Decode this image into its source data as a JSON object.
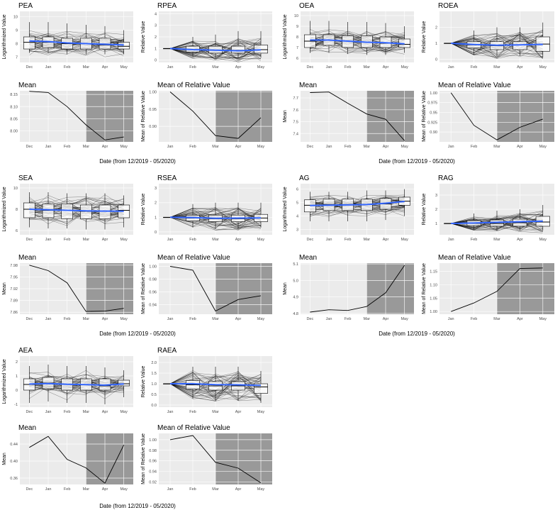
{
  "colors": {
    "panel_bg": "#ebebeb",
    "grid": "#ffffff",
    "line": "#000000",
    "smooth": "#3366ff",
    "shade": "#999999",
    "box_fill": "#ffffff"
  },
  "xcaption": "Date (from 12/2019 - 05/2020)",
  "chart_data": [
    {
      "id": "PEA",
      "type": "boxplot_spaghetti",
      "title": "PEA",
      "ylabel": "Logarithmized Value",
      "categories": [
        "Dec",
        "Jan",
        "Feb",
        "Mar",
        "Apr",
        "May"
      ],
      "ylim": [
        6.6,
        10.4
      ],
      "yticks": [
        7,
        8,
        9,
        10
      ],
      "boxes": [
        [
          7.3,
          7.6,
          8.1,
          8.5,
          9.6
        ],
        [
          7.3,
          7.7,
          8.1,
          8.5,
          9.6
        ],
        [
          7.2,
          7.6,
          8.0,
          8.4,
          9.5
        ],
        [
          7.2,
          7.6,
          8.0,
          8.4,
          9.4
        ],
        [
          7.2,
          7.6,
          7.9,
          8.4,
          9.3
        ],
        [
          7.2,
          7.6,
          7.8,
          8.1,
          9.0
        ]
      ],
      "trend": [
        8.2,
        8.15,
        8.05,
        8.0,
        7.95,
        7.9
      ]
    },
    {
      "id": "RPEA",
      "type": "boxplot_spaghetti",
      "title": "RPEA",
      "ylabel": "Relative Value",
      "categories": [
        "Jan",
        "Feb",
        "Mar",
        "Apr",
        "May"
      ],
      "ylim": [
        -0.2,
        4.2
      ],
      "yticks": [
        0,
        1,
        2,
        3,
        4
      ],
      "boxes": [
        [
          1,
          1,
          1,
          1,
          1
        ],
        [
          0.3,
          0.7,
          0.9,
          1.2,
          2.0
        ],
        [
          0.2,
          0.6,
          0.85,
          1.2,
          2.2
        ],
        [
          0.2,
          0.6,
          0.85,
          1.2,
          2.5
        ],
        [
          0.2,
          0.6,
          0.9,
          1.3,
          2.5
        ]
      ],
      "trend": [
        1.0,
        0.9,
        0.85,
        0.8,
        0.88
      ]
    },
    {
      "id": "OEA",
      "type": "boxplot_spaghetti",
      "title": "OEA",
      "ylabel": "Logarithmized Value",
      "categories": [
        "Dec",
        "Jan",
        "Feb",
        "Mar",
        "Apr",
        "May"
      ],
      "ylim": [
        5.6,
        10.4
      ],
      "yticks": [
        6,
        7,
        8,
        9,
        10
      ],
      "boxes": [
        [
          6.5,
          7.0,
          7.6,
          8.2,
          9.5
        ],
        [
          6.5,
          7.2,
          7.7,
          8.2,
          9.5
        ],
        [
          6.4,
          7.0,
          7.6,
          8.1,
          9.4
        ],
        [
          6.3,
          7.0,
          7.5,
          8.1,
          9.4
        ],
        [
          6.3,
          7.0,
          7.4,
          8.0,
          9.3
        ],
        [
          6.5,
          7.0,
          7.3,
          7.8,
          9.0
        ]
      ],
      "trend": [
        7.7,
        7.7,
        7.6,
        7.5,
        7.45,
        7.35
      ]
    },
    {
      "id": "ROEA",
      "type": "boxplot_spaghetti",
      "title": "ROEA",
      "ylabel": "Relative Value",
      "categories": [
        "Jan",
        "Feb",
        "Mar",
        "Apr",
        "May"
      ],
      "ylim": [
        -0.2,
        3.0
      ],
      "yticks": [
        0,
        1,
        2
      ],
      "boxes": [
        [
          1,
          1,
          1,
          1,
          1
        ],
        [
          0.3,
          0.7,
          0.9,
          1.1,
          1.8
        ],
        [
          0.2,
          0.6,
          0.85,
          1.1,
          2.0
        ],
        [
          0.2,
          0.6,
          0.9,
          1.1,
          2.0
        ],
        [
          0.1,
          0.5,
          0.95,
          1.4,
          2.3
        ]
      ],
      "trend": [
        1.0,
        0.92,
        0.88,
        0.9,
        0.93
      ]
    },
    {
      "id": "PEA_mean",
      "type": "line",
      "title": "Mean",
      "ylabel": "",
      "categories": [
        "Dec",
        "Jan",
        "Feb",
        "Mar",
        "Apr",
        "May"
      ],
      "ylim": [
        7.955,
        8.165
      ],
      "yticks": [
        8.0,
        8.05,
        8.1,
        8.15
      ],
      "ytick_labels": [
        "8.00",
        "8.05",
        "8.10",
        "8.15"
      ],
      "values": [
        8.163,
        8.158,
        8.1,
        8.025,
        7.963,
        7.975
      ],
      "shade_from": "Mar",
      "shade_to": "May"
    },
    {
      "id": "RPEA_mean",
      "type": "line",
      "title": "Mean of Relative Value",
      "ylabel": "Mean of Relative Value",
      "categories": [
        "Jan",
        "Feb",
        "Mar",
        "Apr",
        "May"
      ],
      "ylim": [
        0.855,
        1.003
      ],
      "yticks": [
        0.9,
        0.95,
        1.0
      ],
      "ytick_labels": [
        "0.90",
        "0.95",
        "1.00"
      ],
      "values": [
        1.0,
        0.944,
        0.873,
        0.865,
        0.925
      ],
      "shade_from": "Mar",
      "shade_to": "May"
    },
    {
      "id": "OEA_mean",
      "type": "line",
      "title": "Mean",
      "ylabel": "Mean",
      "categories": [
        "Dec",
        "Jan",
        "Feb",
        "Mar",
        "Apr",
        "May"
      ],
      "ylim": [
        7.33,
        7.76
      ],
      "yticks": [
        7.4,
        7.5,
        7.6,
        7.7
      ],
      "ytick_labels": [
        "7.4",
        "7.5",
        "7.6",
        "7.7"
      ],
      "values": [
        7.745,
        7.75,
        7.655,
        7.565,
        7.52,
        7.34
      ],
      "shade_from": "Mar",
      "shade_to": "May"
    },
    {
      "id": "ROEA_mean",
      "type": "line",
      "title": "Mean of Relative Value",
      "ylabel": "Mean of Relative Value",
      "categories": [
        "Jan",
        "Feb",
        "Mar",
        "Apr",
        "May"
      ],
      "ylim": [
        0.875,
        1.005
      ],
      "yticks": [
        0.9,
        0.925,
        0.95,
        0.975,
        1.0
      ],
      "ytick_labels": [
        "0.90",
        "0.925",
        "0.95",
        "0.975",
        "1.00"
      ],
      "values": [
        1.0,
        0.917,
        0.88,
        0.912,
        0.933
      ],
      "shade_from": "Mar",
      "shade_to": "May"
    },
    {
      "id": "SEA",
      "type": "boxplot_spaghetti",
      "title": "SEA",
      "ylabel": "Logarithmized Value",
      "categories": [
        "Dec",
        "Jan",
        "Feb",
        "Mar",
        "Apr",
        "May"
      ],
      "ylim": [
        5.6,
        10.4
      ],
      "yticks": [
        6,
        8,
        10
      ],
      "boxes": [
        [
          6.3,
          7.2,
          8.0,
          8.6,
          9.6
        ],
        [
          6.2,
          7.2,
          7.9,
          8.5,
          9.6
        ],
        [
          6.2,
          7.1,
          7.9,
          8.5,
          9.5
        ],
        [
          6.1,
          7.1,
          7.8,
          8.4,
          9.5
        ],
        [
          6.1,
          7.1,
          7.8,
          8.4,
          9.5
        ],
        [
          6.3,
          7.2,
          7.9,
          8.4,
          9.3
        ]
      ],
      "trend": [
        8.0,
        7.95,
        7.9,
        7.85,
        7.83,
        7.82
      ]
    },
    {
      "id": "RSEA",
      "type": "boxplot_spaghetti",
      "title": "RSEA",
      "ylabel": "Relative Value",
      "categories": [
        "Jan",
        "Feb",
        "Mar",
        "Apr",
        "May"
      ],
      "ylim": [
        -0.2,
        3.3
      ],
      "yticks": [
        0,
        1,
        2,
        3
      ],
      "boxes": [
        [
          1,
          1,
          1,
          1,
          1
        ],
        [
          0.3,
          0.75,
          0.95,
          1.15,
          1.9
        ],
        [
          0.2,
          0.7,
          0.9,
          1.15,
          2.0
        ],
        [
          0.2,
          0.7,
          0.9,
          1.15,
          2.0
        ],
        [
          0.3,
          0.7,
          0.95,
          1.2,
          2.0
        ]
      ],
      "trend": [
        1.0,
        0.98,
        0.93,
        0.94,
        0.95
      ]
    },
    {
      "id": "AG",
      "type": "boxplot_spaghetti",
      "title": "AG",
      "ylabel": "Logarithmized Value",
      "categories": [
        "Dec",
        "Jan",
        "Feb",
        "Mar",
        "Apr",
        "May"
      ],
      "ylim": [
        2.6,
        6.4
      ],
      "yticks": [
        3,
        4,
        5,
        6
      ],
      "boxes": [
        [
          3.6,
          4.3,
          4.8,
          5.2,
          5.8
        ],
        [
          3.6,
          4.4,
          4.85,
          5.25,
          5.8
        ],
        [
          3.6,
          4.4,
          4.85,
          5.25,
          5.8
        ],
        [
          3.6,
          4.4,
          4.85,
          5.25,
          5.9
        ],
        [
          3.7,
          4.5,
          4.9,
          5.3,
          5.9
        ],
        [
          4.0,
          4.8,
          5.1,
          5.4,
          6.0
        ]
      ],
      "trend": [
        4.78,
        4.8,
        4.82,
        4.85,
        4.95,
        5.08
      ]
    },
    {
      "id": "RAG",
      "type": "boxplot_spaghetti",
      "title": "RAG",
      "ylabel": "Relative Value",
      "categories": [
        "Jan",
        "Feb",
        "Mar",
        "Apr",
        "May"
      ],
      "ylim": [
        0.2,
        3.8
      ],
      "yticks": [
        1,
        2,
        3
      ],
      "boxes": [
        [
          1,
          1,
          1,
          1,
          1
        ],
        [
          0.6,
          0.85,
          1.0,
          1.2,
          1.7
        ],
        [
          0.5,
          0.8,
          1.0,
          1.25,
          1.9
        ],
        [
          0.5,
          0.8,
          1.05,
          1.3,
          2.0
        ],
        [
          0.5,
          0.8,
          1.1,
          1.5,
          2.3
        ]
      ],
      "trend": [
        1.0,
        1.03,
        1.08,
        1.12,
        1.16
      ]
    },
    {
      "id": "SEA_mean",
      "type": "line",
      "title": "Mean",
      "ylabel": "Mean",
      "categories": [
        "Dec",
        "Jan",
        "Feb",
        "Mar",
        "Apr",
        "May"
      ],
      "ylim": [
        7.855,
        7.985
      ],
      "yticks": [
        7.86,
        7.89,
        7.92,
        7.95,
        7.98
      ],
      "ytick_labels": [
        "7.86",
        "7.89",
        "7.92",
        "7.95",
        "7.98"
      ],
      "values": [
        7.98,
        7.966,
        7.935,
        7.862,
        7.863,
        7.87
      ],
      "shade_from": "Mar",
      "shade_to": "May"
    },
    {
      "id": "RSEA_mean",
      "type": "line",
      "title": "Mean of Relative Value",
      "ylabel": "Mean of Relative Value",
      "categories": [
        "Jan",
        "Feb",
        "Mar",
        "Apr",
        "May"
      ],
      "ylim": [
        0.925,
        1.005
      ],
      "yticks": [
        0.94,
        0.96,
        0.98,
        1.0
      ],
      "ytick_labels": [
        "0.94",
        "0.96",
        "0.98",
        "1.00"
      ],
      "values": [
        1.0,
        0.994,
        0.93,
        0.948,
        0.954
      ],
      "shade_from": "Mar",
      "shade_to": "May"
    },
    {
      "id": "AG_mean",
      "type": "line",
      "title": "Mean",
      "ylabel": "Mean",
      "categories": [
        "Dec",
        "Jan",
        "Feb",
        "Mar",
        "Apr",
        "May"
      ],
      "ylim": [
        4.795,
        5.105
      ],
      "yticks": [
        4.8,
        4.9,
        5.0,
        5.1
      ],
      "ytick_labels": [
        "4.8",
        "4.9",
        "5.0",
        "5.1"
      ],
      "values": [
        4.808,
        4.822,
        4.818,
        4.842,
        4.925,
        5.092
      ],
      "shade_from": "Mar",
      "shade_to": "May"
    },
    {
      "id": "RAG_mean",
      "type": "line",
      "title": "Mean of Relative Value",
      "ylabel": "Mean of Relative Value",
      "categories": [
        "Jan",
        "Feb",
        "Mar",
        "Apr",
        "May"
      ],
      "ylim": [
        0.99,
        1.18
      ],
      "yticks": [
        1.0,
        1.05,
        1.1,
        1.15
      ],
      "ytick_labels": [
        "1.00",
        "1.05",
        "1.10",
        "1.15"
      ],
      "values": [
        1.0,
        1.032,
        1.075,
        1.16,
        1.162
      ],
      "shade_from": "Mar",
      "shade_to": "May"
    },
    {
      "id": "AEA",
      "type": "boxplot_spaghetti",
      "title": "AEA",
      "ylabel": "Logarithmized Value",
      "categories": [
        "Dec",
        "Jan",
        "Feb",
        "Mar",
        "Apr",
        "May"
      ],
      "ylim": [
        -1.2,
        2.4
      ],
      "yticks": [
        -1,
        0,
        1,
        2
      ],
      "boxes": [
        [
          -0.9,
          0.0,
          0.4,
          0.8,
          1.7
        ],
        [
          -0.8,
          0.1,
          0.5,
          0.9,
          1.8
        ],
        [
          -0.9,
          0.0,
          0.4,
          0.8,
          1.7
        ],
        [
          -0.9,
          0.0,
          0.4,
          0.8,
          1.7
        ],
        [
          -1.0,
          0.0,
          0.3,
          0.8,
          1.6
        ],
        [
          -0.5,
          0.3,
          0.45,
          0.7,
          1.4
        ]
      ],
      "trend": [
        0.43,
        0.46,
        0.41,
        0.39,
        0.35,
        0.44
      ]
    },
    {
      "id": "RAEA",
      "type": "boxplot_spaghetti",
      "title": "RAEA",
      "ylabel": "Relative Value",
      "categories": [
        "Jan",
        "Feb",
        "Mar",
        "Apr",
        "May"
      ],
      "ylim": [
        -0.1,
        2.3
      ],
      "yticks": [
        0.0,
        0.5,
        1.0,
        1.5,
        2.0
      ],
      "ytick_labels": [
        "0.0",
        "0.5",
        "1.0",
        "1.5",
        "2.0"
      ],
      "boxes": [
        [
          1,
          1,
          1,
          1,
          1
        ],
        [
          0.3,
          0.75,
          0.95,
          1.15,
          1.8
        ],
        [
          0.2,
          0.7,
          0.9,
          1.1,
          1.8
        ],
        [
          0.2,
          0.7,
          0.9,
          1.1,
          1.8
        ],
        [
          0.1,
          0.55,
          0.85,
          1.0,
          1.6
        ]
      ],
      "trend": [
        1.0,
        1.0,
        0.96,
        0.95,
        0.92
      ]
    },
    {
      "id": "AEA_mean",
      "type": "line",
      "title": "Mean",
      "ylabel": "Mean",
      "categories": [
        "Dec",
        "Jan",
        "Feb",
        "Mar",
        "Apr",
        "May"
      ],
      "ylim": [
        0.345,
        0.465
      ],
      "yticks": [
        0.36,
        0.4,
        0.44
      ],
      "ytick_labels": [
        "0.36",
        "0.40",
        "0.44"
      ],
      "values": [
        0.432,
        0.458,
        0.404,
        0.384,
        0.348,
        0.438
      ],
      "shade_from": "Mar",
      "shade_to": "May"
    },
    {
      "id": "RAEA_mean",
      "type": "line",
      "title": "Mean of Relative Value",
      "ylabel": "Mean of Relative Value",
      "categories": [
        "Jan",
        "Feb",
        "Mar",
        "Apr",
        "May"
      ],
      "ylim": [
        0.915,
        1.012
      ],
      "yticks": [
        0.92,
        0.94,
        0.96,
        0.98,
        1.0
      ],
      "ytick_labels": [
        "0.92",
        "0.94",
        "0.96",
        "0.98",
        "1.00"
      ],
      "values": [
        1.0,
        1.008,
        0.957,
        0.946,
        0.918
      ],
      "shade_from": "Mar",
      "shade_to": "May"
    }
  ]
}
